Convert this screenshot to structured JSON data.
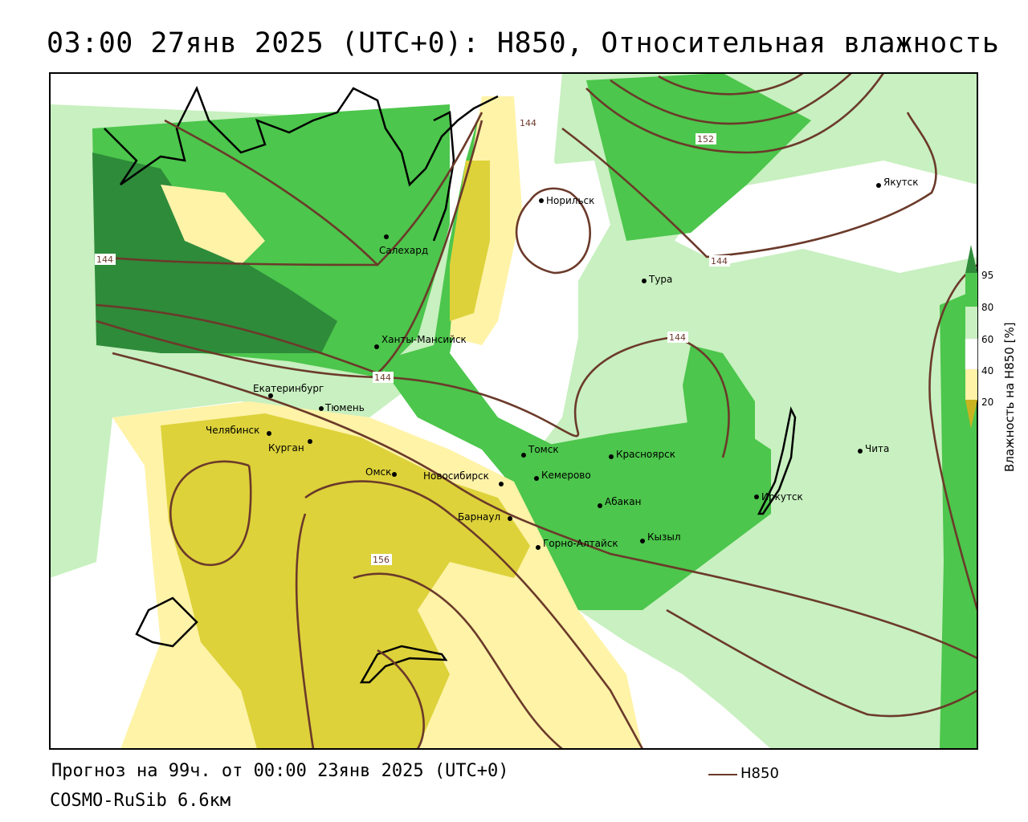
{
  "title": "03:00 27янв 2025 (UTC+0): H850, Относительная влажность",
  "footer": {
    "forecast": "Прогноз на 99ч. от 00:00 23янв 2025 (UTC+0)",
    "model": "COSMO-RuSib 6.6км",
    "line_legend": "H850"
  },
  "colorbar": {
    "title": "Влажность на H850 [%]",
    "ticks": [
      "95",
      "80",
      "60",
      "40",
      "20"
    ],
    "colors": {
      "c95": "#2e8b3a",
      "c80": "#4cc64c",
      "c60": "#c8f0c0",
      "c40": "#ffffff",
      "c20": "#fff3a8",
      "c0": "#c8b420"
    }
  },
  "contour_labels": [
    "144",
    "152",
    "144",
    "144",
    "144",
    "144",
    "156"
  ],
  "cities": [
    {
      "name": "Норильск"
    },
    {
      "name": "Салехард"
    },
    {
      "name": "Якутск"
    },
    {
      "name": "Тура"
    },
    {
      "name": "Ханты-Мансийск"
    },
    {
      "name": "Екатеринбург"
    },
    {
      "name": "Тюмень"
    },
    {
      "name": "Челябинск"
    },
    {
      "name": "Курган"
    },
    {
      "name": "Омск"
    },
    {
      "name": "Новосибирск"
    },
    {
      "name": "Томск"
    },
    {
      "name": "Кемерово"
    },
    {
      "name": "Красноярск"
    },
    {
      "name": "Барнаул"
    },
    {
      "name": "Абакан"
    },
    {
      "name": "Горно-Алтайск"
    },
    {
      "name": "Кызыл"
    },
    {
      "name": "Иркутск"
    },
    {
      "name": "Чита"
    }
  ]
}
